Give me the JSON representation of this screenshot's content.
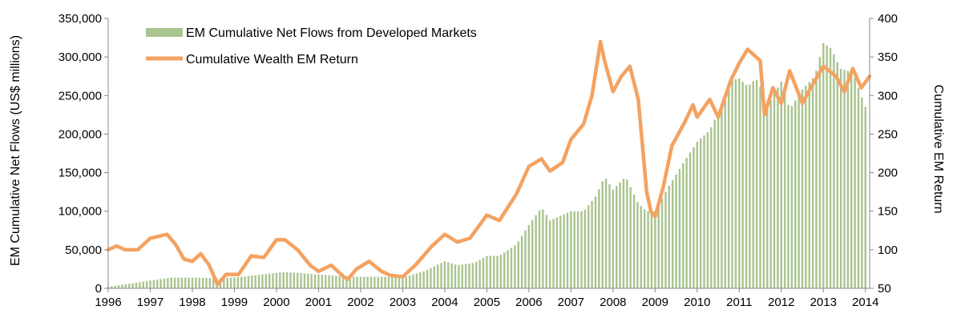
{
  "chart_data": {
    "type": "bar+line",
    "title": "",
    "xlabel": "",
    "ylabel": "EM Cumulative Net Flows (US$ millions)",
    "y2label": "Cumulative EM Return",
    "ylim": [
      0,
      350000
    ],
    "y2lim": [
      50,
      400
    ],
    "yticks": [
      "0",
      "50,000",
      "100,000",
      "150,000",
      "200,000",
      "250,000",
      "300,000",
      "350,000"
    ],
    "y2ticks": [
      "50",
      "100",
      "150",
      "200",
      "250",
      "300",
      "350",
      "400"
    ],
    "xticks": [
      "1996",
      "1997",
      "1998",
      "1999",
      "2000",
      "2001",
      "2002",
      "2003",
      "2004",
      "2005",
      "2006",
      "2007",
      "2008",
      "2009",
      "2010",
      "2011",
      "2012",
      "2013",
      "2014"
    ],
    "xlim": [
      1996.0,
      2014.1
    ],
    "grid": false,
    "legend_position": "top-left",
    "colors": {
      "bars": "#a9c48e",
      "line": "#f4a261",
      "axis": "#888888"
    },
    "series": [
      {
        "name": "EM Cumulative Net Flows from Developed Markets",
        "kind": "bar",
        "axis": "left",
        "points": [
          [
            1996.0,
            2000
          ],
          [
            1996.5,
            6000
          ],
          [
            1997.0,
            10000
          ],
          [
            1997.5,
            14000
          ],
          [
            1998.0,
            14000
          ],
          [
            1998.5,
            13000
          ],
          [
            1999.0,
            14000
          ],
          [
            1999.5,
            17000
          ],
          [
            2000.0,
            20000
          ],
          [
            2000.2,
            21000
          ],
          [
            2000.5,
            20000
          ],
          [
            2001.0,
            18000
          ],
          [
            2001.5,
            16000
          ],
          [
            2002.0,
            15000
          ],
          [
            2002.5,
            15000
          ],
          [
            2003.0,
            14000
          ],
          [
            2003.5,
            22000
          ],
          [
            2004.0,
            35000
          ],
          [
            2004.3,
            30000
          ],
          [
            2004.7,
            33000
          ],
          [
            2005.0,
            42000
          ],
          [
            2005.3,
            42000
          ],
          [
            2005.7,
            57000
          ],
          [
            2006.0,
            82000
          ],
          [
            2006.3,
            105000
          ],
          [
            2006.5,
            88000
          ],
          [
            2007.0,
            100000
          ],
          [
            2007.3,
            100000
          ],
          [
            2007.6,
            120000
          ],
          [
            2007.8,
            145000
          ],
          [
            2008.0,
            128000
          ],
          [
            2008.3,
            145000
          ],
          [
            2008.6,
            110000
          ],
          [
            2008.8,
            100000
          ],
          [
            2009.0,
            100000
          ],
          [
            2009.3,
            130000
          ],
          [
            2009.7,
            165000
          ],
          [
            2010.0,
            190000
          ],
          [
            2010.3,
            205000
          ],
          [
            2010.6,
            240000
          ],
          [
            2010.8,
            270000
          ],
          [
            2011.0,
            272000
          ],
          [
            2011.2,
            262000
          ],
          [
            2011.4,
            272000
          ],
          [
            2011.7,
            240000
          ],
          [
            2012.0,
            268000
          ],
          [
            2012.2,
            232000
          ],
          [
            2012.5,
            258000
          ],
          [
            2012.8,
            275000
          ],
          [
            2013.0,
            318000
          ],
          [
            2013.2,
            310000
          ],
          [
            2013.4,
            285000
          ],
          [
            2013.7,
            280000
          ],
          [
            2013.9,
            250000
          ],
          [
            2014.05,
            228000
          ]
        ]
      },
      {
        "name": "Cumulative Wealth EM Return",
        "kind": "line",
        "axis": "right",
        "points": [
          [
            1996.0,
            100
          ],
          [
            1996.2,
            105
          ],
          [
            1996.4,
            100
          ],
          [
            1996.7,
            100
          ],
          [
            1997.0,
            115
          ],
          [
            1997.4,
            120
          ],
          [
            1997.6,
            107
          ],
          [
            1997.8,
            88
          ],
          [
            1998.0,
            85
          ],
          [
            1998.2,
            95
          ],
          [
            1998.4,
            80
          ],
          [
            1998.6,
            55
          ],
          [
            1998.8,
            68
          ],
          [
            1999.1,
            68
          ],
          [
            1999.4,
            92
          ],
          [
            1999.7,
            90
          ],
          [
            2000.0,
            113
          ],
          [
            2000.2,
            113
          ],
          [
            2000.5,
            100
          ],
          [
            2000.8,
            80
          ],
          [
            2001.0,
            72
          ],
          [
            2001.3,
            80
          ],
          [
            2001.6,
            65
          ],
          [
            2001.7,
            62
          ],
          [
            2001.9,
            75
          ],
          [
            2002.2,
            85
          ],
          [
            2002.5,
            72
          ],
          [
            2002.7,
            67
          ],
          [
            2003.0,
            65
          ],
          [
            2003.3,
            80
          ],
          [
            2003.7,
            105
          ],
          [
            2004.0,
            120
          ],
          [
            2004.3,
            110
          ],
          [
            2004.6,
            115
          ],
          [
            2004.8,
            130
          ],
          [
            2005.0,
            145
          ],
          [
            2005.3,
            138
          ],
          [
            2005.5,
            155
          ],
          [
            2005.7,
            172
          ],
          [
            2006.0,
            208
          ],
          [
            2006.3,
            218
          ],
          [
            2006.5,
            202
          ],
          [
            2006.8,
            213
          ],
          [
            2007.0,
            243
          ],
          [
            2007.3,
            263
          ],
          [
            2007.5,
            300
          ],
          [
            2007.7,
            370
          ],
          [
            2007.8,
            345
          ],
          [
            2008.0,
            305
          ],
          [
            2008.2,
            325
          ],
          [
            2008.4,
            338
          ],
          [
            2008.6,
            295
          ],
          [
            2008.8,
            175
          ],
          [
            2008.9,
            150
          ],
          [
            2009.0,
            143
          ],
          [
            2009.2,
            183
          ],
          [
            2009.4,
            235
          ],
          [
            2009.7,
            265
          ],
          [
            2009.9,
            288
          ],
          [
            2010.0,
            272
          ],
          [
            2010.3,
            295
          ],
          [
            2010.5,
            272
          ],
          [
            2010.8,
            320
          ],
          [
            2011.0,
            342
          ],
          [
            2011.2,
            360
          ],
          [
            2011.5,
            345
          ],
          [
            2011.6,
            275
          ],
          [
            2011.8,
            310
          ],
          [
            2012.0,
            290
          ],
          [
            2012.2,
            332
          ],
          [
            2012.5,
            290
          ],
          [
            2012.7,
            310
          ],
          [
            2013.0,
            338
          ],
          [
            2013.3,
            325
          ],
          [
            2013.5,
            305
          ],
          [
            2013.7,
            335
          ],
          [
            2013.9,
            310
          ],
          [
            2014.1,
            325
          ]
        ]
      }
    ]
  }
}
